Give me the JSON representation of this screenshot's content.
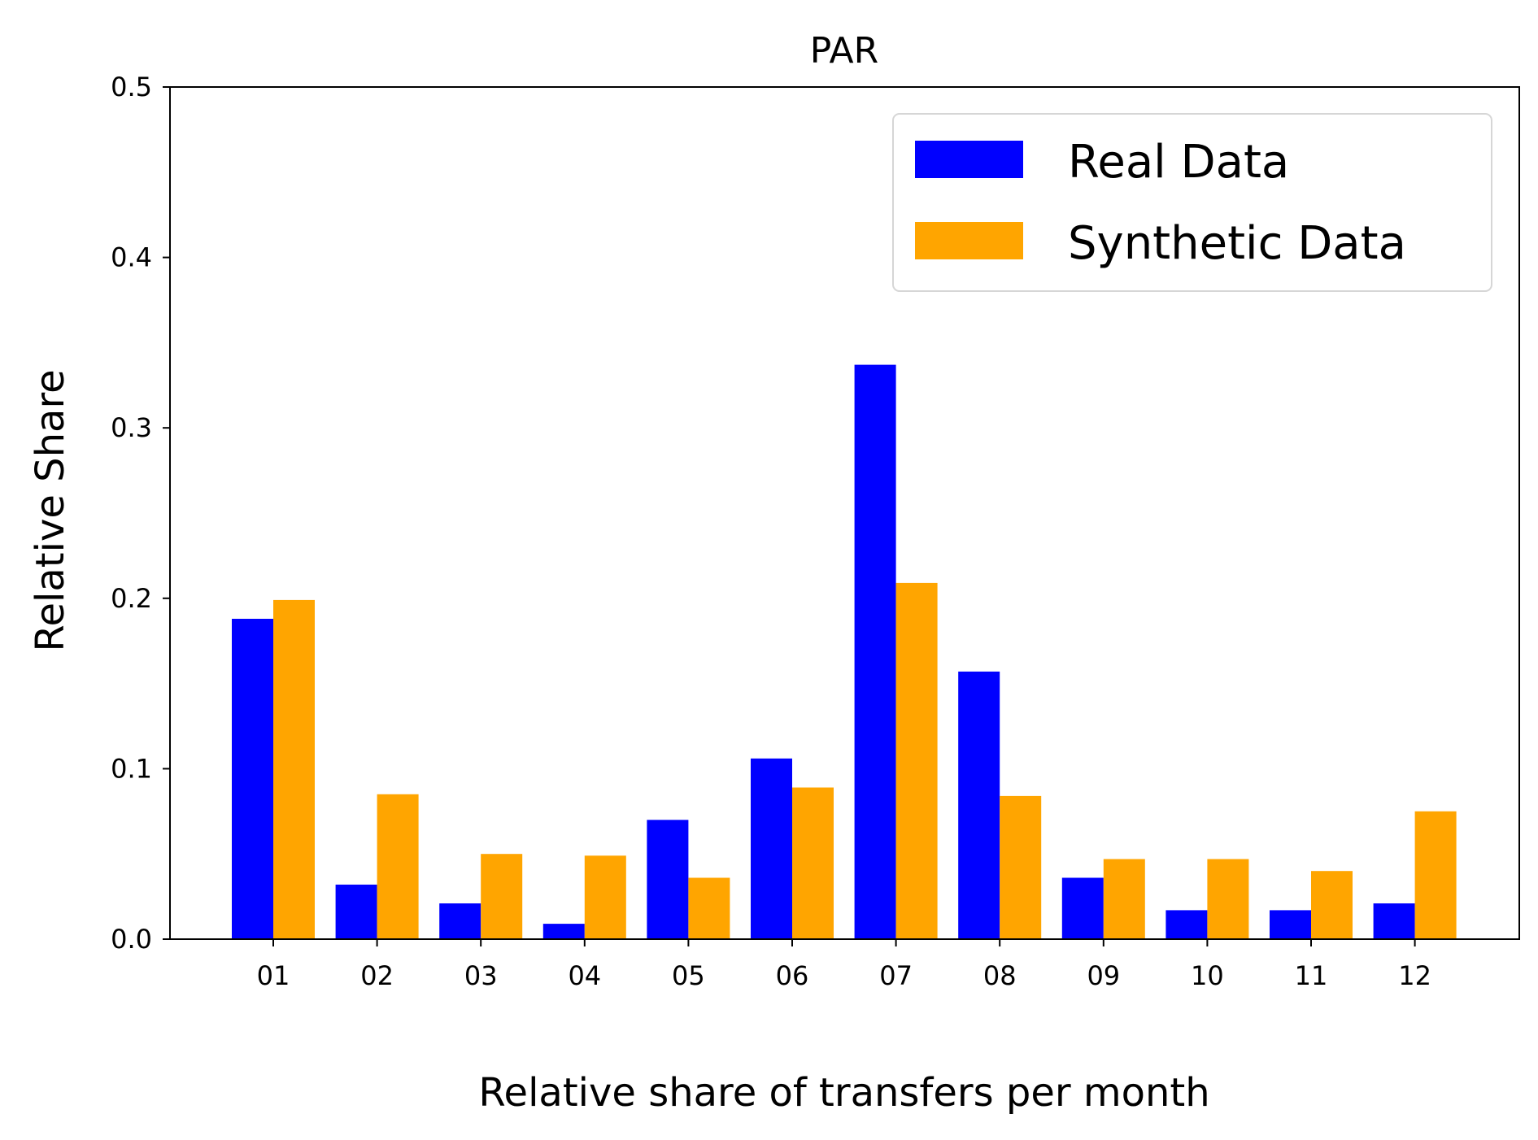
{
  "chart_data": {
    "type": "bar",
    "title": "PAR",
    "xlabel": "Relative share of transfers per month",
    "ylabel": "Relative Share",
    "categories": [
      "01",
      "02",
      "03",
      "04",
      "05",
      "06",
      "07",
      "08",
      "09",
      "10",
      "11",
      "12"
    ],
    "series": [
      {
        "name": "Real Data",
        "color": "#0000ff",
        "values": [
          0.188,
          0.032,
          0.021,
          0.009,
          0.07,
          0.106,
          0.337,
          0.157,
          0.036,
          0.017,
          0.017,
          0.021
        ]
      },
      {
        "name": "Synthetic Data",
        "color": "#ffa500",
        "values": [
          0.199,
          0.085,
          0.05,
          0.049,
          0.036,
          0.089,
          0.209,
          0.084,
          0.047,
          0.047,
          0.04,
          0.075
        ]
      }
    ],
    "ylim": [
      0,
      0.5
    ],
    "yticks": [
      "0.0",
      "0.1",
      "0.2",
      "0.3",
      "0.4",
      "0.5"
    ],
    "grid": false,
    "legend_position": "top-right"
  }
}
